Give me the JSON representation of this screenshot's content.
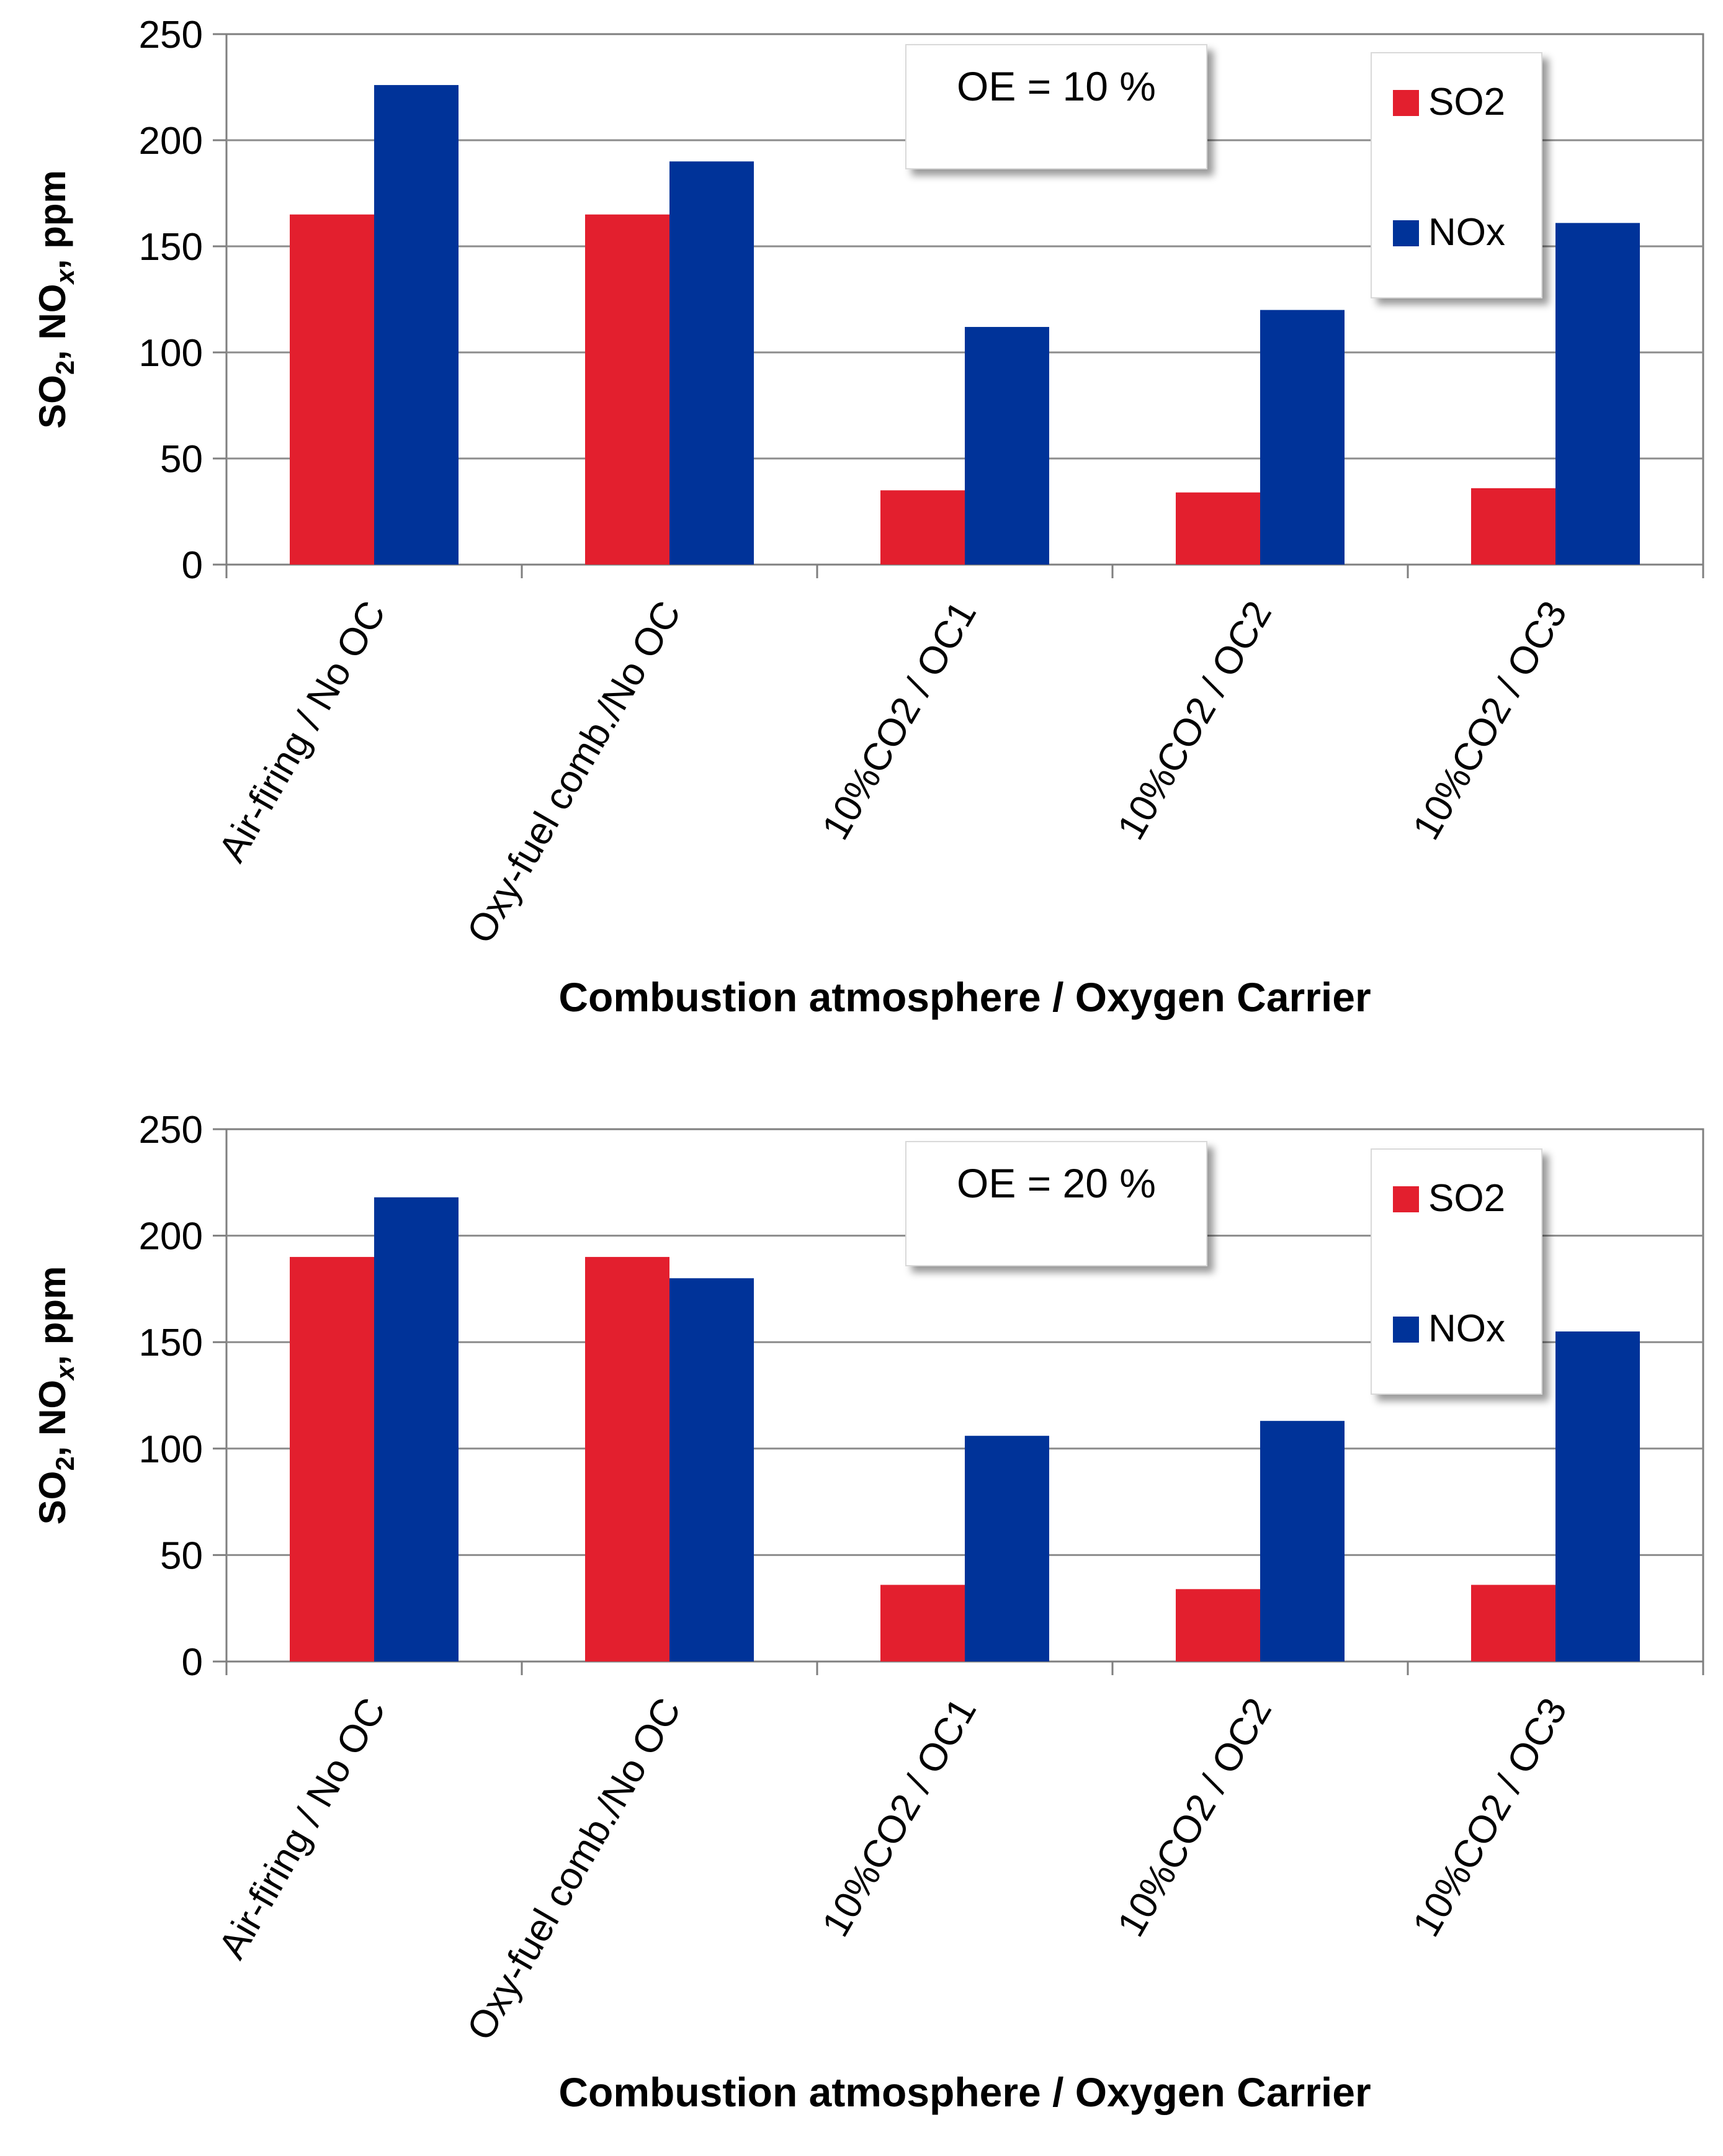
{
  "colors": {
    "so2": "#e31f2e",
    "nox": "#003399",
    "grid": "#8c8c8c",
    "axis": "#7f7f7f"
  },
  "chart_data": [
    {
      "type": "bar",
      "annotation": "OE = 10 %",
      "categories": [
        "Air-firing / No OC",
        "Oxy-fuel comb./No OC",
        "10%CO2 / OC1",
        "10%CO2 / OC2",
        "10%CO2 / OC3"
      ],
      "series": [
        {
          "name": "SO2",
          "values": [
            165,
            165,
            35,
            34,
            36
          ]
        },
        {
          "name": "NOx",
          "values": [
            226,
            190,
            112,
            120,
            161
          ]
        }
      ],
      "ylim": [
        0,
        250
      ],
      "yticks": [
        0,
        50,
        100,
        150,
        200,
        250
      ],
      "xlabel": "Combustion atmosphere / Oxygen Carrier",
      "ylabel": {
        "p1": "SO",
        "s1": "2",
        "p2": ", NO",
        "s2": "x",
        "p3": ", ppm"
      },
      "legend_position": "top-right"
    },
    {
      "type": "bar",
      "annotation": "OE = 20 %",
      "categories": [
        "Air-firing / No OC",
        "Oxy-fuel comb./No OC",
        "10%CO2 / OC1",
        "10%CO2 / OC2",
        "10%CO2 / OC3"
      ],
      "series": [
        {
          "name": "SO2",
          "values": [
            190,
            190,
            36,
            34,
            36
          ]
        },
        {
          "name": "NOx",
          "values": [
            218,
            180,
            106,
            113,
            155
          ]
        }
      ],
      "ylim": [
        0,
        250
      ],
      "yticks": [
        0,
        50,
        100,
        150,
        200,
        250
      ],
      "xlabel": "Combustion atmosphere / Oxygen Carrier",
      "ylabel": {
        "p1": "SO",
        "s1": "2",
        "p2": ", NO",
        "s2": "x",
        "p3": ", ppm"
      },
      "legend_position": "top-right"
    }
  ]
}
